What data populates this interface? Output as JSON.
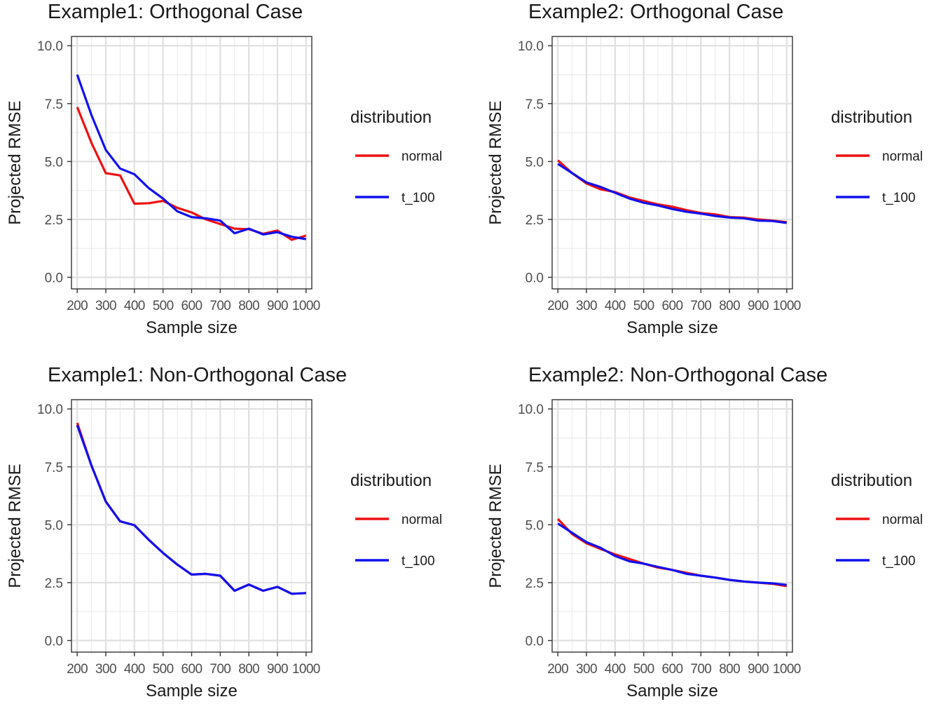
{
  "legend": {
    "title": "distribution",
    "entries": [
      {
        "label": "normal",
        "color": "#ee1111"
      },
      {
        "label": "t_100",
        "color": "#1111ee"
      }
    ]
  },
  "chart_data": [
    {
      "type": "line",
      "title": "Example1: Orthogonal Case",
      "xlabel": "Sample size",
      "ylabel": "Projected RMSE",
      "xlim": [
        180,
        1020
      ],
      "ylim": [
        -0.5,
        10.4
      ],
      "xticks": [
        200,
        300,
        400,
        500,
        600,
        700,
        800,
        900,
        1000
      ],
      "yticks": [
        0,
        2.5,
        5,
        7.5,
        10
      ],
      "yticklabels": [
        "0.0",
        "2.5",
        "5.0",
        "7.5",
        "10.0"
      ],
      "grid": true,
      "legend": "right",
      "x": [
        200,
        250,
        300,
        350,
        400,
        450,
        500,
        550,
        600,
        650,
        700,
        750,
        800,
        850,
        900,
        950,
        1000
      ],
      "series": [
        {
          "name": "normal",
          "color": "#ee1111",
          "values": [
            7.35,
            5.8,
            4.5,
            4.4,
            3.18,
            3.2,
            3.3,
            3.0,
            2.8,
            2.5,
            2.3,
            2.1,
            2.08,
            1.88,
            2.02,
            1.62,
            1.8
          ]
        },
        {
          "name": "t_100",
          "color": "#1111ee",
          "values": [
            8.75,
            7.0,
            5.5,
            4.7,
            4.45,
            3.85,
            3.4,
            2.85,
            2.6,
            2.55,
            2.45,
            1.9,
            2.1,
            1.85,
            1.95,
            1.75,
            1.65
          ]
        }
      ]
    },
    {
      "type": "line",
      "title": "Example2: Orthogonal Case",
      "xlabel": "Sample size",
      "ylabel": "Projected RMSE",
      "xlim": [
        180,
        1020
      ],
      "ylim": [
        -0.5,
        10.4
      ],
      "xticks": [
        200,
        300,
        400,
        500,
        600,
        700,
        800,
        900,
        1000
      ],
      "yticks": [
        0,
        2.5,
        5,
        7.5,
        10
      ],
      "yticklabels": [
        "0.0",
        "2.5",
        "5.0",
        "7.5",
        "10.0"
      ],
      "grid": true,
      "legend": "right",
      "x": [
        200,
        250,
        300,
        350,
        400,
        450,
        500,
        550,
        600,
        650,
        700,
        750,
        800,
        850,
        900,
        950,
        1000
      ],
      "series": [
        {
          "name": "normal",
          "color": "#ee1111",
          "values": [
            5.05,
            4.5,
            4.05,
            3.8,
            3.68,
            3.45,
            3.3,
            3.15,
            3.05,
            2.9,
            2.78,
            2.72,
            2.6,
            2.58,
            2.5,
            2.45,
            2.38
          ]
        },
        {
          "name": "t_100",
          "color": "#1111ee",
          "values": [
            4.9,
            4.5,
            4.1,
            3.9,
            3.65,
            3.4,
            3.22,
            3.1,
            2.95,
            2.83,
            2.75,
            2.65,
            2.58,
            2.55,
            2.45,
            2.43,
            2.35
          ]
        }
      ]
    },
    {
      "type": "line",
      "title": "Example1: Non-Orthogonal Case",
      "xlabel": "Sample size",
      "ylabel": "Projected RMSE",
      "xlim": [
        180,
        1020
      ],
      "ylim": [
        -0.5,
        10.4
      ],
      "xticks": [
        200,
        300,
        400,
        500,
        600,
        700,
        800,
        900,
        1000
      ],
      "yticks": [
        0,
        2.5,
        5,
        7.5,
        10
      ],
      "yticklabels": [
        "0.0",
        "2.5",
        "5.0",
        "7.5",
        "10.0"
      ],
      "grid": true,
      "legend": "right",
      "x": [
        200,
        250,
        300,
        350,
        400,
        450,
        500,
        550,
        600,
        650,
        700,
        750,
        800,
        850,
        900,
        950,
        1000
      ],
      "series": [
        {
          "name": "normal",
          "color": "#ee1111",
          "values": [
            9.4,
            7.55,
            6.0,
            5.15,
            4.98,
            4.35,
            3.78,
            3.28,
            2.85,
            2.88,
            2.8,
            2.15,
            2.42,
            2.15,
            2.32,
            2.02,
            2.05
          ]
        },
        {
          "name": "t_100",
          "color": "#1111ee",
          "values": [
            9.3,
            7.55,
            6.0,
            5.15,
            4.98,
            4.35,
            3.78,
            3.28,
            2.85,
            2.88,
            2.8,
            2.15,
            2.42,
            2.15,
            2.32,
            2.02,
            2.05
          ]
        }
      ]
    },
    {
      "type": "line",
      "title": "Example2: Non-Orthogonal Case",
      "xlabel": "Sample size",
      "ylabel": "Projected RMSE",
      "xlim": [
        180,
        1020
      ],
      "ylim": [
        -0.5,
        10.4
      ],
      "xticks": [
        200,
        300,
        400,
        500,
        600,
        700,
        800,
        900,
        1000
      ],
      "yticks": [
        0,
        2.5,
        5,
        7.5,
        10
      ],
      "yticklabels": [
        "0.0",
        "2.5",
        "5.0",
        "7.5",
        "10.0"
      ],
      "grid": true,
      "legend": "right",
      "x": [
        200,
        250,
        300,
        350,
        400,
        450,
        500,
        550,
        600,
        650,
        700,
        750,
        800,
        850,
        900,
        950,
        1000
      ],
      "series": [
        {
          "name": "normal",
          "color": "#ee1111",
          "values": [
            5.25,
            4.6,
            4.2,
            3.95,
            3.72,
            3.52,
            3.32,
            3.15,
            3.05,
            2.92,
            2.8,
            2.72,
            2.62,
            2.55,
            2.5,
            2.45,
            2.35
          ]
        },
        {
          "name": "t_100",
          "color": "#1111ee",
          "values": [
            5.05,
            4.65,
            4.25,
            4.0,
            3.65,
            3.42,
            3.32,
            3.18,
            3.05,
            2.88,
            2.8,
            2.72,
            2.62,
            2.55,
            2.5,
            2.47,
            2.4
          ]
        }
      ]
    }
  ]
}
